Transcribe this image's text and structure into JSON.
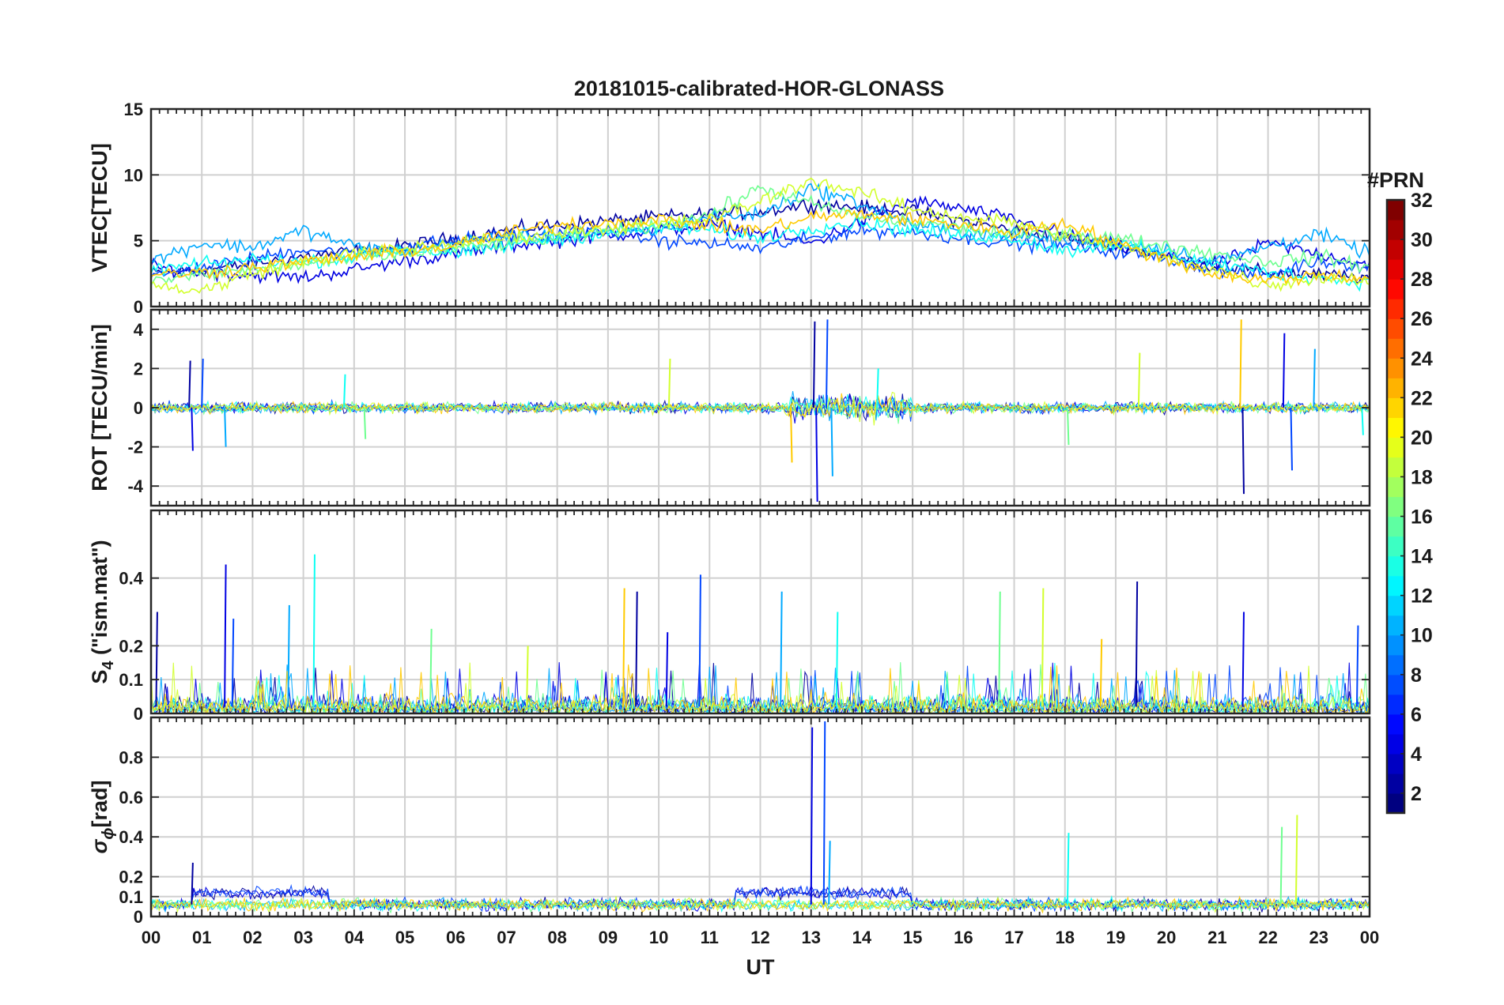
{
  "title": "20181015-calibrated-HOR-GLONASS",
  "colors": {
    "background": "#ffffff",
    "grid": "#d0d0d0",
    "axes": "#262626"
  },
  "chart_data": [
    {
      "type": "line",
      "panel": "vtec",
      "ylabel": "VTEC[TECU]",
      "ylim": [
        0,
        15
      ],
      "yticks": [
        "0",
        "5",
        "10",
        "15"
      ],
      "xlim": [
        0,
        24
      ],
      "xticks": [
        "00",
        "01",
        "02",
        "03",
        "04",
        "05",
        "06",
        "07",
        "08",
        "09",
        "10",
        "11",
        "12",
        "13",
        "14",
        "15",
        "16",
        "17",
        "18",
        "19",
        "20",
        "21",
        "22",
        "23",
        "00"
      ],
      "grid": true,
      "series": [
        {
          "prn": 2,
          "x": [
            0,
            1,
            2,
            3,
            4,
            5,
            6,
            7,
            8,
            9,
            10,
            11,
            12,
            13,
            14,
            15,
            16,
            17,
            18,
            19,
            20,
            21,
            22,
            23,
            24
          ],
          "y": [
            2.5,
            2.8,
            3.2,
            3.8,
            4.2,
            4.6,
            5.2,
            5.8,
            6.2,
            6.5,
            6.8,
            7.0,
            7.2,
            7.8,
            7.5,
            7.2,
            6.5,
            5.8,
            5.2,
            4.5,
            3.8,
            3.0,
            2.6,
            2.4,
            2.2
          ]
        },
        {
          "prn": 4,
          "x": [
            0,
            1,
            2,
            3,
            4,
            5,
            6,
            7,
            8,
            9,
            10,
            11,
            12,
            13,
            14,
            15,
            16,
            17,
            18,
            19,
            20,
            21,
            22,
            23,
            24
          ],
          "y": [
            3.0,
            2.6,
            2.4,
            2.2,
            2.8,
            3.5,
            4.0,
            4.6,
            5.0,
            5.4,
            5.8,
            6.2,
            5.6,
            4.8,
            6.5,
            8.0,
            7.4,
            6.6,
            5.5,
            4.6,
            3.8,
            3.2,
            4.8,
            4.0,
            3.2
          ]
        },
        {
          "prn": 7,
          "x": [
            0,
            1,
            2,
            3,
            4,
            5,
            6,
            7,
            8,
            9,
            10,
            11,
            12,
            13,
            14,
            15,
            16,
            17,
            18,
            19,
            20,
            21,
            22,
            23,
            24
          ],
          "y": [
            2.2,
            3.0,
            3.6,
            4.4,
            4.0,
            4.6,
            5.0,
            5.4,
            5.6,
            5.8,
            5.0,
            4.8,
            4.4,
            5.2,
            5.8,
            5.6,
            5.2,
            4.8,
            4.6,
            4.2,
            3.6,
            2.8,
            2.4,
            3.5,
            3.0
          ]
        },
        {
          "prn": 10,
          "x": [
            0,
            1,
            2,
            3,
            4,
            5,
            6,
            7,
            8,
            9,
            10,
            11,
            12,
            13,
            14,
            15,
            16,
            17,
            18,
            19,
            20,
            21,
            22,
            23,
            24
          ],
          "y": [
            3.5,
            4.8,
            4.5,
            5.8,
            4.6,
            4.2,
            4.8,
            5.4,
            5.2,
            5.6,
            5.8,
            6.8,
            7.0,
            9.0,
            7.8,
            6.2,
            5.6,
            5.4,
            5.0,
            4.8,
            4.4,
            3.4,
            4.6,
            5.5,
            4.0
          ]
        },
        {
          "prn": 13,
          "x": [
            0,
            1,
            2,
            3,
            4,
            5,
            6,
            7,
            8,
            9,
            10,
            11,
            12,
            13,
            14,
            15,
            16,
            17,
            18,
            19,
            20,
            21,
            22,
            23,
            24
          ],
          "y": [
            2.8,
            3.2,
            3.6,
            3.4,
            3.8,
            4.4,
            4.0,
            4.6,
            5.2,
            5.6,
            6.0,
            5.8,
            5.2,
            6.0,
            6.4,
            5.8,
            5.4,
            5.2,
            4.2,
            4.8,
            4.0,
            3.2,
            2.6,
            2.2,
            1.8
          ]
        },
        {
          "prn": 16,
          "x": [
            0,
            1,
            2,
            3,
            4,
            5,
            6,
            7,
            8,
            9,
            10,
            11,
            12,
            13,
            14,
            15,
            16,
            17,
            18,
            19,
            20,
            21,
            22,
            23,
            24
          ],
          "y": [
            2.0,
            2.4,
            2.8,
            3.2,
            3.6,
            4.0,
            4.4,
            4.8,
            5.2,
            5.8,
            6.2,
            7.0,
            9.0,
            7.8,
            6.8,
            6.4,
            6.0,
            5.4,
            5.6,
            5.2,
            4.6,
            4.0,
            3.4,
            3.8,
            3.0
          ]
        },
        {
          "prn": 19,
          "x": [
            0,
            1,
            2,
            3,
            4,
            5,
            6,
            7,
            8,
            9,
            10,
            11,
            12,
            13,
            14,
            15,
            16,
            17,
            18,
            19,
            20,
            21,
            22,
            23,
            24
          ],
          "y": [
            1.6,
            1.2,
            2.5,
            3.4,
            4.0,
            4.4,
            4.8,
            5.2,
            5.6,
            6.0,
            6.2,
            6.6,
            8.0,
            9.6,
            8.6,
            7.4,
            6.8,
            6.4,
            5.4,
            4.6,
            3.6,
            2.8,
            1.6,
            2.2,
            2.0
          ]
        },
        {
          "prn": 22,
          "x": [
            0,
            1,
            2,
            3,
            4,
            5,
            6,
            7,
            8,
            9,
            10,
            11,
            12,
            13,
            14,
            15,
            16,
            17,
            18,
            19,
            20,
            21,
            22,
            23,
            24
          ],
          "y": [
            2.4,
            2.6,
            3.0,
            3.4,
            3.8,
            4.2,
            4.6,
            5.6,
            6.2,
            6.4,
            6.6,
            6.2,
            5.8,
            6.8,
            7.0,
            6.6,
            6.2,
            5.6,
            6.4,
            4.8,
            3.6,
            2.4,
            2.0,
            2.4,
            2.2
          ]
        }
      ]
    },
    {
      "type": "line",
      "panel": "rot",
      "ylabel": "ROT [TECU/min]",
      "ylim": [
        -5,
        5
      ],
      "yticks": [
        "-4",
        "-2",
        "0",
        "2",
        "4"
      ],
      "xlim": [
        0,
        24
      ],
      "grid": true,
      "spikes": [
        {
          "x": 0.75,
          "y": 2.4
        },
        {
          "x": 0.8,
          "y": -2.2
        },
        {
          "x": 1.0,
          "y": 2.5
        },
        {
          "x": 1.45,
          "y": -2.0
        },
        {
          "x": 3.8,
          "y": 1.7
        },
        {
          "x": 4.2,
          "y": -1.6
        },
        {
          "x": 10.2,
          "y": 2.5
        },
        {
          "x": 12.6,
          "y": -2.8
        },
        {
          "x": 13.05,
          "y": 4.4
        },
        {
          "x": 13.1,
          "y": -4.8
        },
        {
          "x": 13.3,
          "y": 4.5
        },
        {
          "x": 13.4,
          "y": -3.5
        },
        {
          "x": 14.3,
          "y": 2.0
        },
        {
          "x": 18.05,
          "y": -1.9
        },
        {
          "x": 19.45,
          "y": 2.8
        },
        {
          "x": 21.45,
          "y": 4.5
        },
        {
          "x": 21.5,
          "y": -4.4
        },
        {
          "x": 22.3,
          "y": 3.8
        },
        {
          "x": 22.45,
          "y": -3.2
        },
        {
          "x": 22.9,
          "y": 3.0
        },
        {
          "x": 23.85,
          "y": -1.4
        }
      ]
    },
    {
      "type": "line",
      "panel": "s4",
      "ylabel_main": "S",
      "ylabel_sub": "4",
      "ylabel_rest": " (\"ism.mat\")",
      "ylim": [
        0,
        0.6
      ],
      "yticks": [
        "0",
        "0.1",
        "0.2",
        "0.4"
      ],
      "ytick_values": [
        0,
        0.1,
        0.2,
        0.4
      ],
      "xlim": [
        0,
        24
      ],
      "grid": true,
      "spikes": [
        {
          "x": 0.1,
          "y": 0.3
        },
        {
          "x": 1.45,
          "y": 0.44
        },
        {
          "x": 1.6,
          "y": 0.28
        },
        {
          "x": 2.7,
          "y": 0.32
        },
        {
          "x": 3.2,
          "y": 0.47
        },
        {
          "x": 5.5,
          "y": 0.25
        },
        {
          "x": 7.4,
          "y": 0.2
        },
        {
          "x": 9.3,
          "y": 0.37
        },
        {
          "x": 9.55,
          "y": 0.36
        },
        {
          "x": 10.15,
          "y": 0.24
        },
        {
          "x": 10.8,
          "y": 0.41
        },
        {
          "x": 12.4,
          "y": 0.36
        },
        {
          "x": 13.5,
          "y": 0.3
        },
        {
          "x": 16.7,
          "y": 0.36
        },
        {
          "x": 17.55,
          "y": 0.37
        },
        {
          "x": 18.7,
          "y": 0.22
        },
        {
          "x": 19.4,
          "y": 0.39
        },
        {
          "x": 21.5,
          "y": 0.3
        },
        {
          "x": 23.75,
          "y": 0.26
        }
      ]
    },
    {
      "type": "line",
      "panel": "sigma-phi",
      "ylabel_main": "σ",
      "ylabel_sub": "ϕ",
      "ylabel_rest": "[rad]",
      "ylim": [
        0,
        1
      ],
      "yticks": [
        "0",
        "0.1",
        "0.2",
        "0.4",
        "0.6",
        "0.8"
      ],
      "ytick_values": [
        0,
        0.1,
        0.2,
        0.4,
        0.6,
        0.8
      ],
      "xlim": [
        0,
        24
      ],
      "xlabel": "UT",
      "grid": true,
      "spikes": [
        {
          "x": 0.8,
          "y": 0.27
        },
        {
          "x": 13.0,
          "y": 0.95
        },
        {
          "x": 13.25,
          "y": 0.98
        },
        {
          "x": 13.35,
          "y": 0.38
        },
        {
          "x": 18.05,
          "y": 0.42
        },
        {
          "x": 22.25,
          "y": 0.45
        },
        {
          "x": 22.55,
          "y": 0.51
        }
      ]
    }
  ],
  "colorbar": {
    "label": "#PRN",
    "range": [
      1,
      32
    ],
    "ticks": [
      "2",
      "4",
      "6",
      "8",
      "10",
      "12",
      "14",
      "16",
      "18",
      "20",
      "22",
      "24",
      "26",
      "28",
      "30",
      "32"
    ]
  }
}
